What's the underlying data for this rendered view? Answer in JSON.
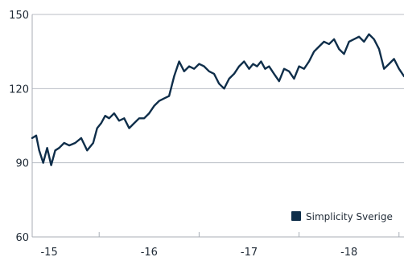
{
  "chart_data": {
    "type": "line",
    "ylim": [
      60,
      150
    ],
    "yticks": [
      60,
      90,
      120,
      150
    ],
    "xlim": [
      2014.83,
      2018.55
    ],
    "xtick_positions": [
      2015,
      2016,
      2017,
      2018
    ],
    "xtick_labels": [
      "-15",
      "-16",
      "-17",
      "-18"
    ],
    "grid": "horizontal",
    "legend": {
      "position": "bottom-right",
      "entries": [
        "Simplicity Sverige"
      ]
    },
    "colors": {
      "series": "#0f2e4a",
      "grid": "#b9bec6",
      "axis": "#a8aeb6"
    },
    "series": [
      {
        "name": "Simplicity Sverige",
        "x": [
          2014.83,
          2014.87,
          2014.9,
          2014.94,
          2014.98,
          2015.02,
          2015.06,
          2015.1,
          2015.15,
          2015.2,
          2015.26,
          2015.32,
          2015.38,
          2015.44,
          2015.48,
          2015.52,
          2015.56,
          2015.6,
          2015.65,
          2015.7,
          2015.75,
          2015.8,
          2015.85,
          2015.9,
          2015.95,
          2016.0,
          2016.05,
          2016.1,
          2016.15,
          2016.2,
          2016.25,
          2016.3,
          2016.35,
          2016.4,
          2016.45,
          2016.5,
          2016.55,
          2016.6,
          2016.65,
          2016.7,
          2016.75,
          2016.8,
          2016.85,
          2016.9,
          2016.95,
          2017.0,
          2017.04,
          2017.08,
          2017.12,
          2017.16,
          2017.2,
          2017.25,
          2017.3,
          2017.35,
          2017.4,
          2017.45,
          2017.5,
          2017.55,
          2017.6,
          2017.65,
          2017.7,
          2017.75,
          2017.8,
          2017.85,
          2017.9,
          2017.95,
          2018.0,
          2018.05,
          2018.1,
          2018.15,
          2018.2,
          2018.25,
          2018.3,
          2018.35,
          2018.4,
          2018.45,
          2018.5,
          2018.55
        ],
        "values": [
          100,
          101,
          95,
          90,
          96,
          89,
          95,
          96,
          98,
          97,
          98,
          100,
          95,
          98,
          104,
          106,
          109,
          108,
          110,
          107,
          108,
          104,
          106,
          108,
          108,
          110,
          113,
          115,
          116,
          117,
          125,
          131,
          127,
          129,
          128,
          130,
          129,
          127,
          126,
          122,
          120,
          124,
          126,
          129,
          131,
          128,
          130,
          129,
          131,
          128,
          129,
          126,
          123,
          128,
          127,
          124,
          129,
          128,
          131,
          135,
          137,
          139,
          138,
          140,
          136,
          134,
          139,
          140,
          141,
          139,
          142,
          140,
          136,
          128,
          130,
          132,
          128,
          125
        ]
      }
    ]
  }
}
